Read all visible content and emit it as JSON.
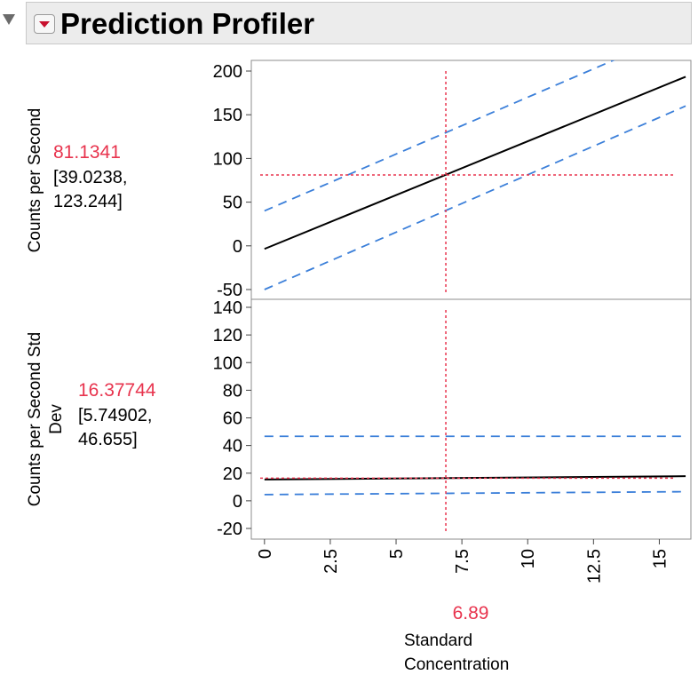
{
  "header": {
    "title": "Prediction Profiler"
  },
  "colors": {
    "prediction": "#e8344e",
    "interval": "#3b7fd9",
    "line": "#000000",
    "crosshair": "#e8344e"
  },
  "chart_data": [
    {
      "type": "line",
      "ylabel": "Counts per Second",
      "prediction": "81.1341",
      "interval": "[39.0238,\n123.244]",
      "ylim": [
        -50,
        200
      ],
      "yticks": [
        "200",
        "150",
        "100",
        "50",
        "0",
        "-50"
      ],
      "ytick_values": [
        200,
        150,
        100,
        50,
        0,
        -50
      ],
      "x": [
        0,
        16
      ],
      "series": [
        {
          "role": "fit",
          "values": [
            -3.5,
            193.5
          ]
        },
        {
          "role": "upper",
          "values": [
            40,
            248
          ]
        },
        {
          "role": "lower",
          "values": [
            -50,
            160
          ]
        }
      ],
      "crosshair": {
        "x": 6.89,
        "y": 81.1341
      }
    },
    {
      "type": "line",
      "ylabel": "Counts per Second Std\nDev",
      "prediction": "16.37744",
      "interval": "[5.74902,\n46.655]",
      "ylim": [
        -25,
        145
      ],
      "yticks": [
        "140",
        "120",
        "100",
        "80",
        "60",
        "40",
        "20",
        "0",
        "-20"
      ],
      "ytick_values": [
        140,
        120,
        100,
        80,
        60,
        40,
        20,
        0,
        -20
      ],
      "x": [
        0,
        16
      ],
      "series": [
        {
          "role": "fit",
          "values": [
            15.4,
            17.8
          ]
        },
        {
          "role": "upper",
          "values": [
            46.655,
            46.655
          ]
        },
        {
          "role": "lower",
          "values": [
            4.5,
            6.6
          ]
        }
      ],
      "crosshair": {
        "x": 6.89,
        "y": 16.37744
      }
    }
  ],
  "x_axis": {
    "label": "Standard\nConcentration",
    "ticks": [
      "0",
      "2.5",
      "5",
      "7.5",
      "10",
      "12.5",
      "15"
    ],
    "tick_values": [
      0,
      2.5,
      5,
      7.5,
      10,
      12.5,
      15
    ],
    "current_value": "6.89",
    "xlim": [
      -0.5,
      16.2
    ]
  }
}
